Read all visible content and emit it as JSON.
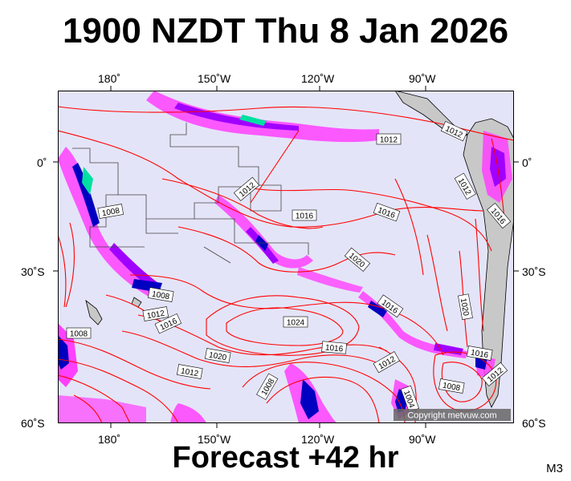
{
  "header": {
    "title": "1900 NZDT Thu 8 Jan 2026"
  },
  "footer": {
    "forecast": "Forecast +42 hr",
    "code": "M3"
  },
  "map": {
    "lon_labels": [
      "180˚",
      "150˚W",
      "120˚W",
      "90˚W"
    ],
    "lat_labels": [
      "0˚",
      "30˚S",
      "60˚S"
    ],
    "copyright": "Copyright metvuw.com",
    "isobar_labels": [
      "1012",
      "1012",
      "1012",
      "1012",
      "1016",
      "1016",
      "1016",
      "1008",
      "1020",
      "1020",
      "1008",
      "1012",
      "1016",
      "1024",
      "1020",
      "1016",
      "1016",
      "1008",
      "1012",
      "1012",
      "1008",
      "1004",
      "1008",
      "1012",
      "1016"
    ],
    "colors": {
      "background": "#e4e4f8",
      "land": "#c8c8c8",
      "isobar": "#ff0000",
      "rain_light": "#ff40ff",
      "rain_medium": "#a000ff",
      "rain_heavy": "#0000c0",
      "rain_extreme": "#00e0a0"
    }
  }
}
